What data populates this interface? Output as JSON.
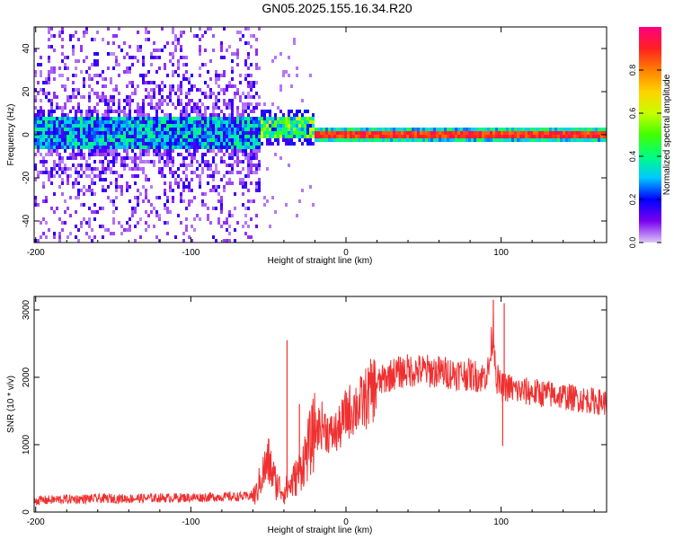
{
  "title": "GN05.2025.155.16.34.R20",
  "chart_data": [
    {
      "type": "heatmap",
      "xlabel": "Height of straight line (km)",
      "ylabel": "Frequency (Hz)",
      "xlim": [
        -201,
        168
      ],
      "ylim": [
        -50,
        50
      ],
      "x_ticks": [
        -200,
        -100,
        0,
        100
      ],
      "y_ticks": [
        -40,
        -20,
        0,
        20,
        40
      ],
      "grid": false,
      "colorbar": {
        "label": "Normalized spectral amplitude",
        "range": [
          0.0,
          1.0
        ],
        "ticks": [
          "0.0",
          "0.2",
          "0.4",
          "0.6",
          "0.8"
        ],
        "colormap": [
          "#dcc6f8",
          "#7a00f0",
          "#0000ff",
          "#00c8ff",
          "#00ff80",
          "#40ff00",
          "#c8ff00",
          "#ffd200",
          "#ff8000",
          "#ff2020",
          "#ff0080"
        ]
      },
      "regions": [
        {
          "x_range": [
            -201,
            -55
          ],
          "pattern": "broadband noise",
          "band_center_hz": 1,
          "band_halfwidth_hz": 8,
          "sparse_extent_hz": [
            -50,
            50
          ],
          "peak_amplitude": 0.3
        },
        {
          "x_range": [
            -55,
            -20
          ],
          "pattern": "transition",
          "band_center_hz": 3,
          "band_halfwidth_hz": 5,
          "peak_amplitude": 0.55
        },
        {
          "x_range": [
            -20,
            168
          ],
          "pattern": "narrow carrier line",
          "band_center_hz": 0,
          "band_halfwidth_hz": 2,
          "peak_amplitude": 0.95
        }
      ]
    },
    {
      "type": "line",
      "xlabel": "Height of straight line (km)",
      "ylabel": "SNR (10 * v/v)",
      "xlim": [
        -201,
        168
      ],
      "ylim": [
        0,
        3200
      ],
      "x_ticks": [
        -200,
        -100,
        0,
        100
      ],
      "y_ticks": [
        0,
        1000,
        2000,
        3000
      ],
      "grid": false,
      "series": [
        {
          "color": "#f03030",
          "x": [
            -201,
            -180,
            -160,
            -140,
            -120,
            -100,
            -80,
            -65,
            -58,
            -55,
            -50,
            -45,
            -40,
            -35,
            -30,
            -25,
            -20,
            -15,
            -10,
            -5,
            0,
            5,
            10,
            15,
            20,
            25,
            30,
            40,
            50,
            60,
            70,
            80,
            88,
            92,
            95,
            97,
            100,
            105,
            110,
            120,
            130,
            140,
            150,
            160,
            168
          ],
          "y": [
            170,
            190,
            200,
            200,
            210,
            215,
            225,
            230,
            260,
            500,
            750,
            420,
            300,
            420,
            600,
            900,
            1200,
            1300,
            1150,
            1200,
            1450,
            1550,
            1600,
            1750,
            1900,
            1980,
            2050,
            2100,
            2100,
            2080,
            2060,
            2040,
            2000,
            2100,
            2750,
            2000,
            1850,
            1850,
            1800,
            1780,
            1750,
            1720,
            1680,
            1650,
            1620
          ],
          "spikes": [
            {
              "x": -38,
              "y": 2550
            },
            {
              "x": -30,
              "y": 1600
            },
            {
              "x": 95,
              "y": 3150
            },
            {
              "x": 102,
              "y": 3100
            },
            {
              "x": 101,
              "y": 980
            }
          ]
        }
      ]
    }
  ]
}
